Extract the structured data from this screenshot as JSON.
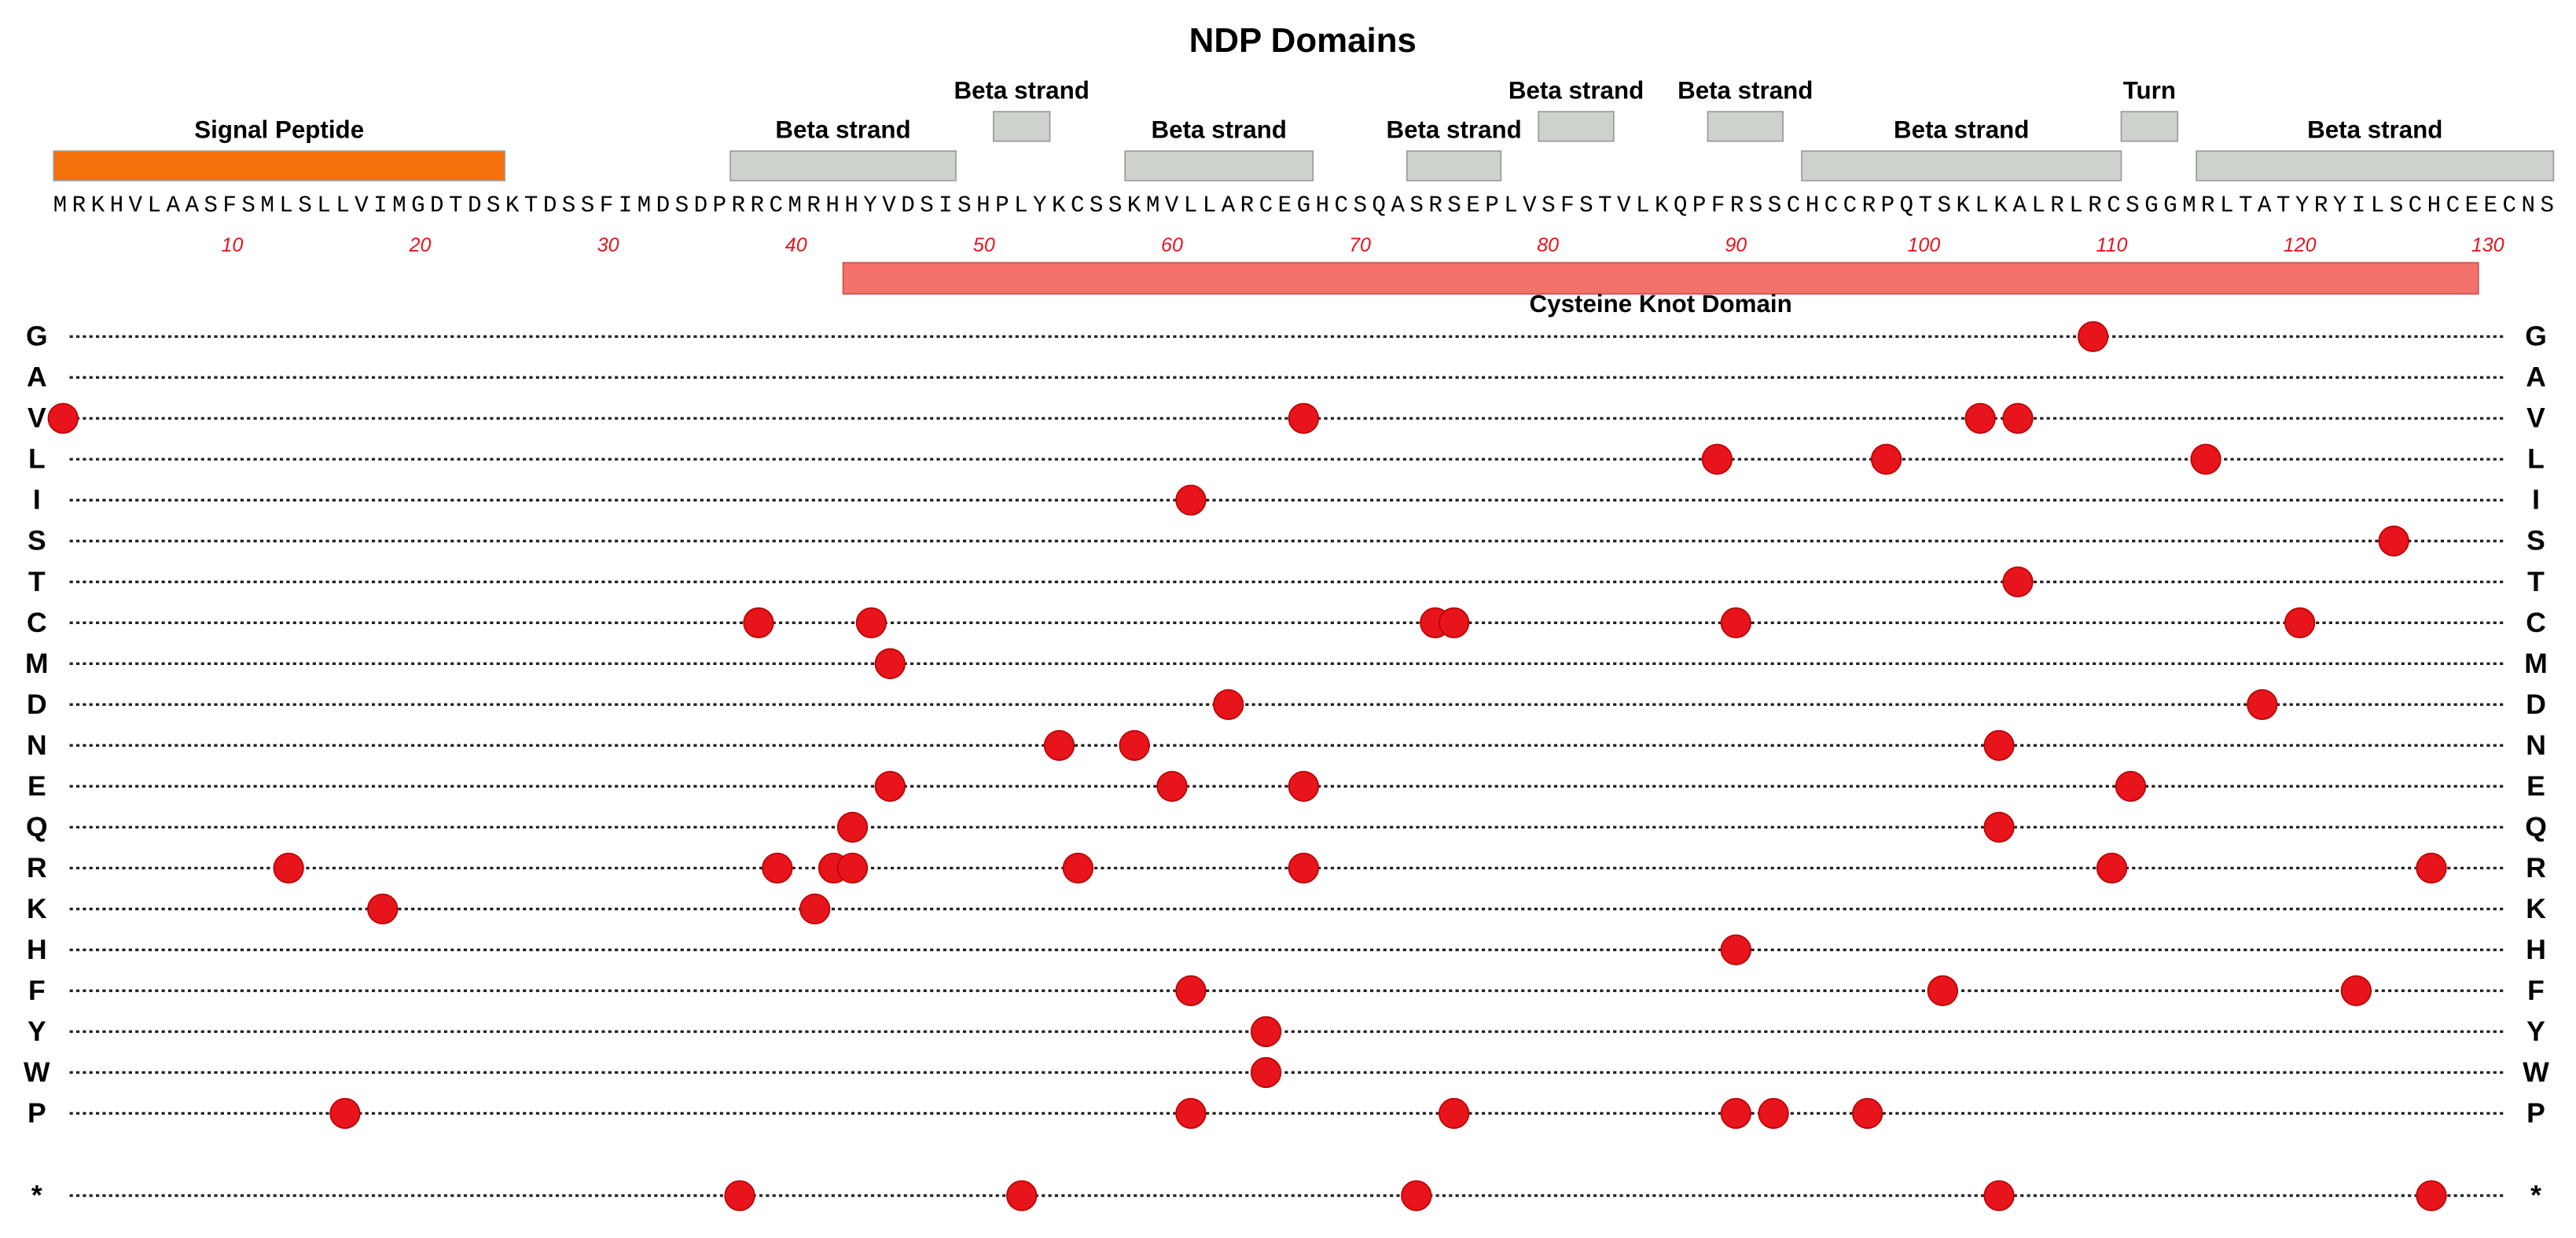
{
  "chart_data": {
    "type": "mutation-dots",
    "title": "NDP Domains",
    "sequence": "MRKHVLAASFSMLSLLVIMGDTDSKTDSSFIMDSDPRRCMRHHYVDSISHPLYKCSSKMVLLARCEGHCSQASRSEPLVSFSTVLKQPFRSSCHCCRPQTSKLKALRLRCSGGMRLTATYRYILSCHCEECNS",
    "xlim": [
      1,
      133
    ],
    "xticks": [
      10,
      20,
      30,
      40,
      50,
      60,
      70,
      80,
      90,
      100,
      110,
      120,
      130
    ],
    "tick_color": "#e8141b",
    "dot_color": "#e8141b",
    "domains": [
      {
        "name": "Signal Peptide",
        "start": 1,
        "end": 24,
        "color": "#f5700a"
      },
      {
        "name": "Beta strand",
        "start": 37,
        "end": 48,
        "color": "#cdd2cc"
      },
      {
        "name": "Beta strand",
        "start": 51,
        "end": 53,
        "color": "#cdd2cc"
      },
      {
        "name": "Beta strand",
        "start": 58,
        "end": 67,
        "color": "#cdd2cc"
      },
      {
        "name": "Beta strand",
        "start": 73,
        "end": 77,
        "color": "#cdd2cc"
      },
      {
        "name": "Beta strand",
        "start": 80,
        "end": 83,
        "color": "#cdd2cc"
      },
      {
        "name": "Beta strand",
        "start": 89,
        "end": 92,
        "color": "#cdd2cc"
      },
      {
        "name": "Beta strand",
        "start": 94,
        "end": 110,
        "color": "#cdd2cc"
      },
      {
        "name": "Turn",
        "start": 111,
        "end": 113,
        "color": "#cdd2cc"
      },
      {
        "name": "Beta strand",
        "start": 115,
        "end": 133,
        "color": "#cdd2cc"
      }
    ],
    "region": {
      "name": "Cysteine Knot Domain",
      "start": 43,
      "end": 129,
      "color": "#f4706a"
    },
    "rows": [
      {
        "name": "G",
        "positions": [
          109
        ]
      },
      {
        "name": "A",
        "positions": []
      },
      {
        "name": "V",
        "positions": [
          1,
          67,
          103,
          105
        ]
      },
      {
        "name": "L",
        "positions": [
          89,
          98,
          115
        ]
      },
      {
        "name": "I",
        "positions": [
          61
        ]
      },
      {
        "name": "S",
        "positions": [
          125
        ]
      },
      {
        "name": "T",
        "positions": [
          105
        ]
      },
      {
        "name": "C",
        "positions": [
          38,
          44,
          74,
          75,
          90,
          120
        ]
      },
      {
        "name": "M",
        "positions": [
          45
        ]
      },
      {
        "name": "D",
        "positions": [
          63,
          118
        ]
      },
      {
        "name": "N",
        "positions": [
          54,
          58,
          104
        ]
      },
      {
        "name": "E",
        "positions": [
          45,
          60,
          67,
          111
        ]
      },
      {
        "name": "Q",
        "positions": [
          43,
          104
        ]
      },
      {
        "name": "R",
        "positions": [
          13,
          39,
          42,
          43,
          55,
          67,
          110,
          127
        ]
      },
      {
        "name": "K",
        "positions": [
          18,
          41
        ]
      },
      {
        "name": "H",
        "positions": [
          90
        ]
      },
      {
        "name": "F",
        "positions": [
          61,
          101,
          123
        ]
      },
      {
        "name": "Y",
        "positions": [
          65
        ]
      },
      {
        "name": "W",
        "positions": [
          65
        ]
      },
      {
        "name": "P",
        "positions": [
          16,
          61,
          75,
          90,
          92,
          97
        ]
      },
      {
        "name": "*",
        "positions": [
          37,
          52,
          73,
          104,
          127
        ]
      }
    ]
  }
}
